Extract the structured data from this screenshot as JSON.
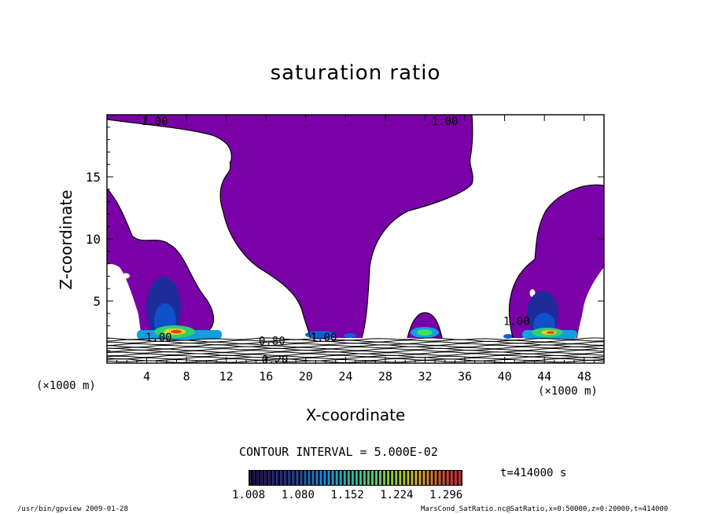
{
  "chart_data": {
    "type": "heatmap",
    "title": "saturation ratio",
    "xlabel": "X-coordinate",
    "ylabel": "Z-coordinate",
    "x_unit_left": "(×1000 m)",
    "x_unit_right": "(×1000 m)",
    "xlim": [
      0,
      50
    ],
    "ylim": [
      0,
      20
    ],
    "x_ticks": [
      "4",
      "8",
      "12",
      "16",
      "20",
      "24",
      "28",
      "32",
      "36",
      "40",
      "44",
      "48"
    ],
    "x_tick_values": [
      4,
      8,
      12,
      16,
      20,
      24,
      28,
      32,
      36,
      40,
      44,
      48
    ],
    "y_ticks": [
      "5",
      "10",
      "15"
    ],
    "y_tick_values": [
      5,
      10,
      15
    ],
    "contour_labels": [
      {
        "text": "1.00",
        "x": 4.8,
        "y": 19.5
      },
      {
        "text": "1.00",
        "x": 34.0,
        "y": 19.5
      },
      {
        "text": "1.00",
        "x": 5.2,
        "y": 2.1
      },
      {
        "text": "1.00",
        "x": 21.8,
        "y": 2.1
      },
      {
        "text": "0.80",
        "x": 16.6,
        "y": 1.8
      },
      {
        "text": "0.20",
        "x": 16.9,
        "y": 0.3
      },
      {
        "text": "1.00",
        "x": 41.2,
        "y": 3.4
      }
    ],
    "contour_interval": "CONTOUR INTERVAL = 5.000E-02",
    "colorbar": {
      "tick_labels": [
        "1.008",
        "1.080",
        "1.152",
        "1.224",
        "1.296"
      ],
      "min": 1.008,
      "max": 1.32
    },
    "saturated_color": "#7a00a8",
    "time_label": "t=414000 s"
  },
  "footer": {
    "left": "/usr/bin/gpview 2009-01-28",
    "right": "MarsCond_SatRatio.nc@SatRatio,x=0:50000,z=0:20000,t=414000"
  }
}
